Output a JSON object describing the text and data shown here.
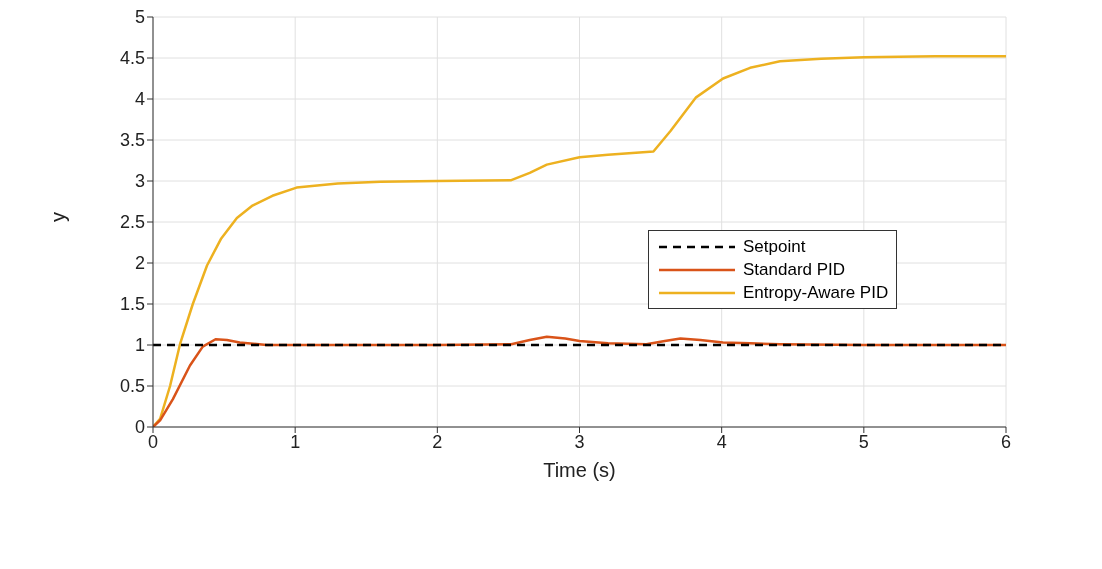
{
  "chart_data": {
    "type": "line",
    "xlabel": "Time (s)",
    "ylabel": "y",
    "xlim": [
      0,
      6
    ],
    "xticks": [
      0,
      1,
      2,
      3,
      4,
      5,
      6
    ],
    "ylim": [
      0,
      5
    ],
    "yticks": [
      0,
      0.5,
      1,
      1.5,
      2,
      2.5,
      3,
      3.5,
      4,
      4.5,
      5
    ],
    "grid": true,
    "legend": "right",
    "marker": "none",
    "series": [
      {
        "name": "Setpoint",
        "color": "#000000",
        "line_style": "dashed",
        "x": [
          0,
          6
        ],
        "values": [
          1,
          1
        ]
      },
      {
        "name": "Standard PID",
        "color": "#d95319",
        "line_style": "solid",
        "x": [
          0,
          0.05,
          0.14,
          0.26,
          0.35,
          0.44,
          0.52,
          0.61,
          0.8,
          1.2,
          2,
          2.52,
          2.65,
          2.77,
          2.9,
          3.0,
          3.2,
          3.47,
          3.6,
          3.71,
          3.85,
          4.01,
          4.2,
          4.41,
          5,
          6
        ],
        "values": [
          0,
          0.08,
          0.34,
          0.75,
          0.98,
          1.07,
          1.06,
          1.03,
          1.0,
          1.0,
          1.0,
          1.01,
          1.06,
          1.1,
          1.08,
          1.05,
          1.02,
          1.01,
          1.05,
          1.08,
          1.06,
          1.03,
          1.02,
          1.01,
          1.0,
          1.0
        ]
      },
      {
        "name": "Entropy-Aware PID",
        "color": "#edb120",
        "line_style": "solid",
        "x": [
          0,
          0.05,
          0.12,
          0.19,
          0.28,
          0.38,
          0.48,
          0.59,
          0.7,
          0.84,
          1.01,
          1.3,
          1.6,
          2,
          2.52,
          2.65,
          2.77,
          3.0,
          3.2,
          3.52,
          3.64,
          3.82,
          4.01,
          4.2,
          4.41,
          4.7,
          5,
          5.5,
          6
        ],
        "values": [
          0,
          0.1,
          0.5,
          1.01,
          1.5,
          1.97,
          2.3,
          2.55,
          2.7,
          2.82,
          2.92,
          2.97,
          2.99,
          3.0,
          3.01,
          3.1,
          3.2,
          3.29,
          3.32,
          3.36,
          3.61,
          4.02,
          4.25,
          4.38,
          4.46,
          4.49,
          4.51,
          4.52,
          4.52
        ]
      }
    ]
  }
}
